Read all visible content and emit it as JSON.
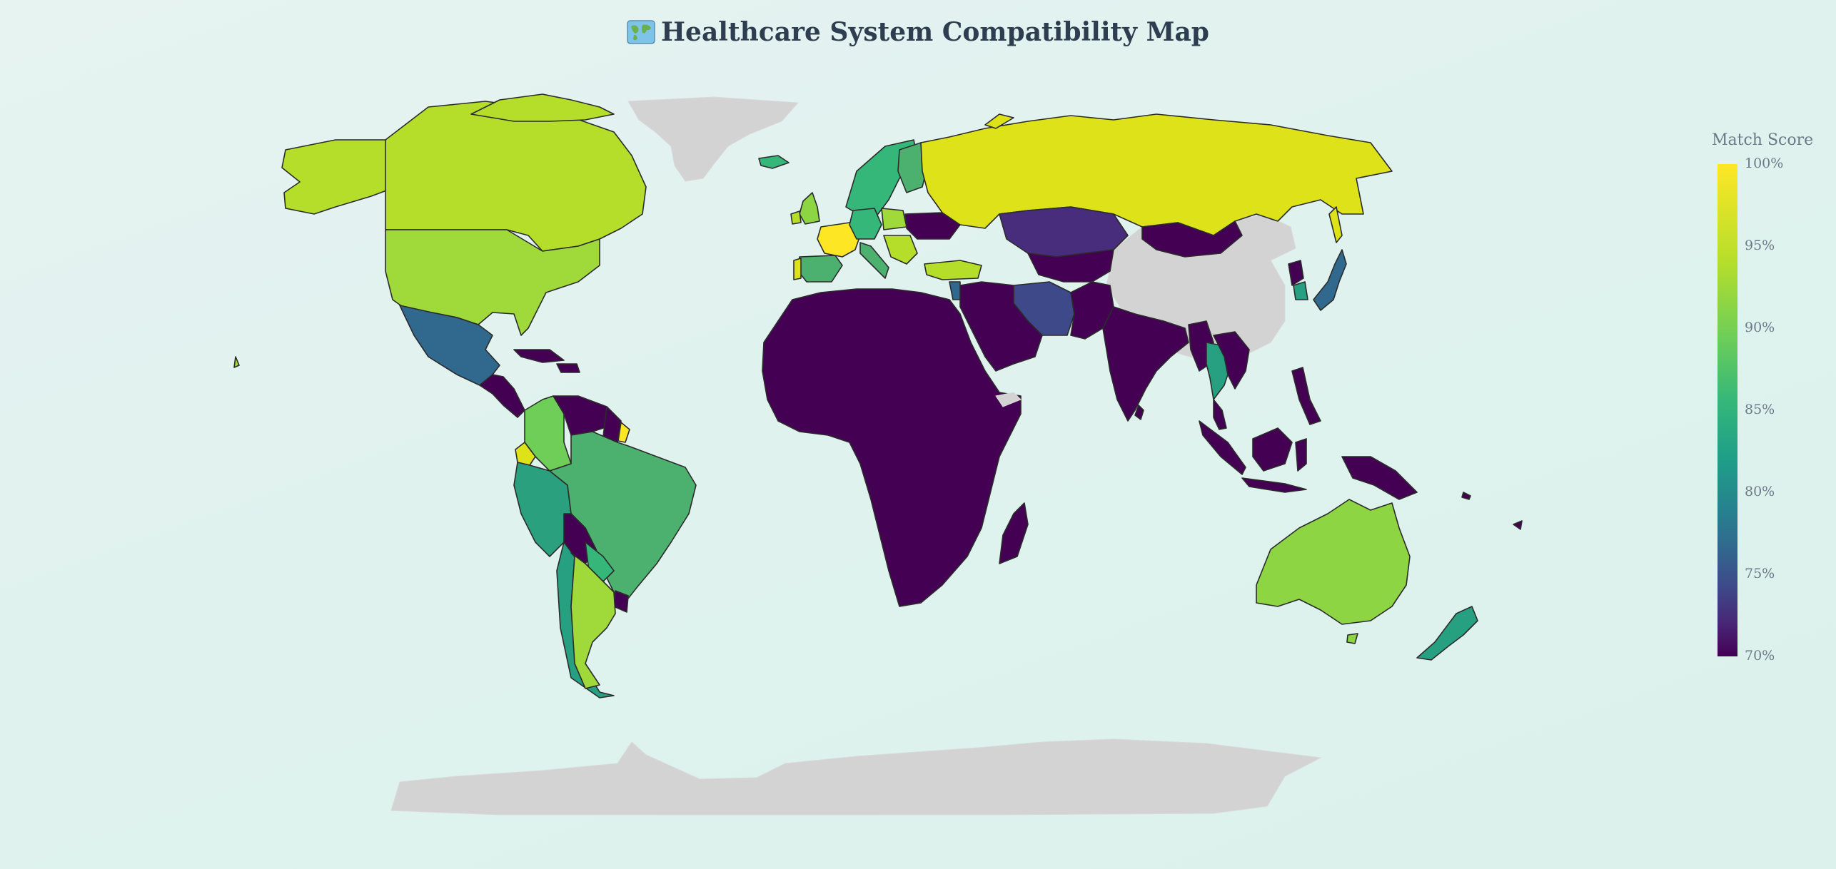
{
  "title": "Healthcare System Compatibility Map",
  "icon": "world-map-icon",
  "colorbar": {
    "title": "Match Score",
    "ticks": [
      "100%",
      "95%",
      "90%",
      "85%",
      "80%",
      "75%",
      "70%"
    ],
    "range": [
      70,
      100
    ],
    "colorscale": "Viridis"
  },
  "map": {
    "projection": "natural-earth",
    "no_data_color": "#d3d3d3",
    "scores_percent": {
      "Russia": 98,
      "Canada": 96,
      "USA": 95,
      "Alaska": 96,
      "Mexico": 81,
      "Central America": 70,
      "Caribbean": 70,
      "Colombia": 93,
      "Ecuador": 99,
      "Venezuela": 70,
      "Guyana": 70,
      "French Guiana": 99,
      "Peru": 87,
      "Brazil": 89,
      "Bolivia": 70,
      "Paraguay": 86,
      "Chile": 87,
      "Argentina": 94,
      "Uruguay": 70,
      "France": 100,
      "Spain": 89,
      "Portugal": 97,
      "United Kingdom": 94,
      "Norway": 87,
      "Sweden": 87,
      "Finland": 90,
      "Germany": 90,
      "Poland": 94,
      "Italy": 91,
      "Ukraine": 70,
      "Turkey": 96,
      "Iceland": 88,
      "Kazakhstan": 72,
      "Mongolia": 70,
      "Iran": 78,
      "Middle East": 70,
      "Africa": 70,
      "Madagascar": 70,
      "India": 70,
      "Southeast Asia": 70,
      "Thailand": 88,
      "Indonesia": 70,
      "Papua New Guinea": 70,
      "Japan": 83,
      "South Korea": 88,
      "North Korea": 70,
      "Australia": 95,
      "New Zealand": 86
    }
  }
}
